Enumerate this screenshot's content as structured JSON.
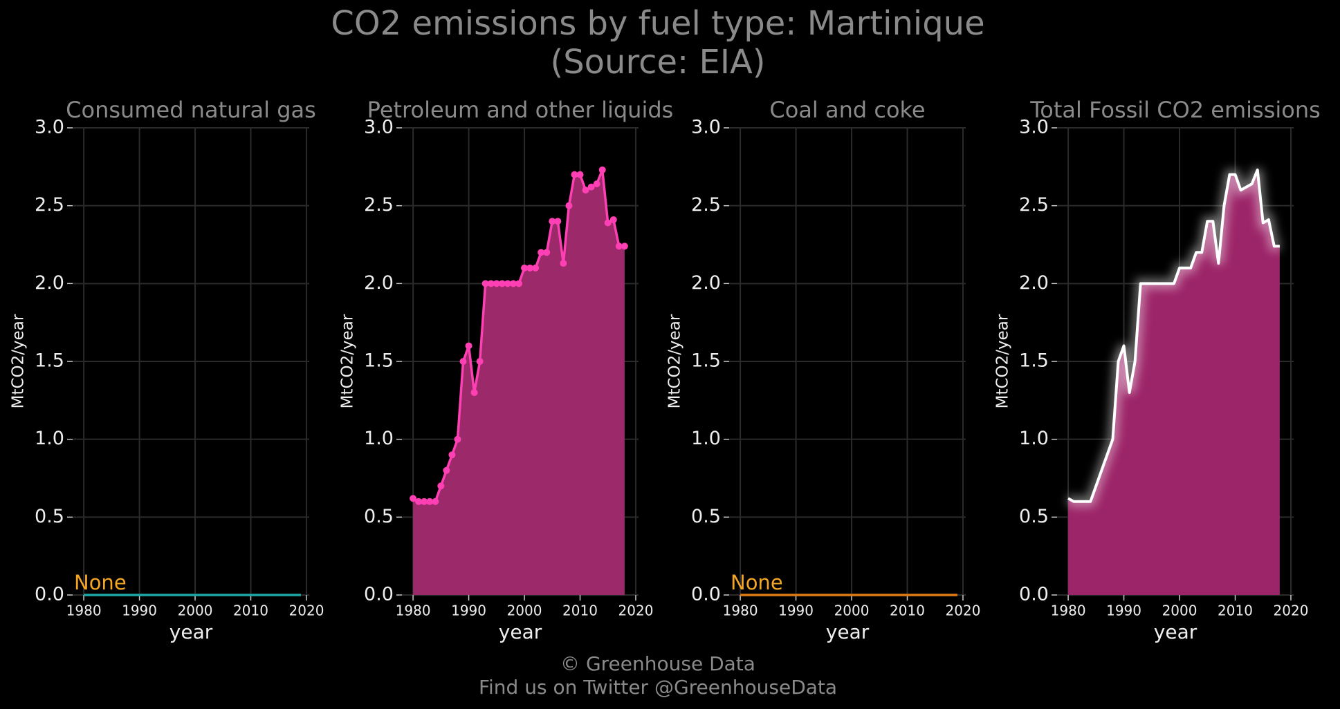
{
  "title": "CO2 emissions by fuel type: Martinique",
  "subtitle": "(Source: EIA)",
  "footer": [
    "© Greenhouse Data",
    "Find us on Twitter @GreenhouseData"
  ],
  "chart_data": [
    {
      "type": "line",
      "title": "Consumed natural gas",
      "xlabel": "year",
      "ylabel": "MtCO2/year",
      "annotation": "None",
      "annotation_color": "#f5a623",
      "x": [
        1980,
        1981,
        1982,
        1983,
        1984,
        1985,
        1986,
        1987,
        1988,
        1989,
        1990,
        1991,
        1992,
        1993,
        1994,
        1995,
        1996,
        1997,
        1998,
        1999,
        2000,
        2001,
        2002,
        2003,
        2004,
        2005,
        2006,
        2007,
        2008,
        2009,
        2010,
        2011,
        2012,
        2013,
        2014,
        2015,
        2016,
        2017,
        2018,
        2019
      ],
      "series": [
        {
          "color": "#1fa8a8",
          "values": [
            0,
            0,
            0,
            0,
            0,
            0,
            0,
            0,
            0,
            0,
            0,
            0,
            0,
            0,
            0,
            0,
            0,
            0,
            0,
            0,
            0,
            0,
            0,
            0,
            0,
            0,
            0,
            0,
            0,
            0,
            0,
            0,
            0,
            0,
            0,
            0,
            0,
            0,
            0,
            0
          ]
        }
      ],
      "xlim": [
        1978,
        2020.5
      ],
      "ylim": [
        0,
        3.0
      ],
      "xticks": [
        1980,
        1990,
        2000,
        2010,
        2020
      ],
      "yticks": [
        {
          "value": 0,
          "label": "0.0"
        },
        {
          "value": 0.5,
          "label": "0.5"
        },
        {
          "value": 1,
          "label": "1.0"
        },
        {
          "value": 1.5,
          "label": "1.5"
        },
        {
          "value": 2,
          "label": "2.0"
        },
        {
          "value": 2.5,
          "label": "2.5"
        },
        {
          "value": 3,
          "label": "3.0"
        }
      ],
      "grid": true
    },
    {
      "type": "line",
      "title": "Petroleum and other liquids",
      "xlabel": "year",
      "ylabel": "MtCO2/year",
      "x": [
        1980,
        1981,
        1982,
        1983,
        1984,
        1985,
        1986,
        1987,
        1988,
        1989,
        1990,
        1991,
        1992,
        1993,
        1994,
        1995,
        1996,
        1997,
        1998,
        1999,
        2000,
        2001,
        2002,
        2003,
        2004,
        2005,
        2006,
        2007,
        2008,
        2009,
        2010,
        2011,
        2012,
        2013,
        2014,
        2015,
        2016,
        2017,
        2018
      ],
      "series": [
        {
          "color": "#ff3fb4",
          "area_color": "#9c2a6a",
          "markers": true,
          "values": [
            0.62,
            0.6,
            0.6,
            0.6,
            0.6,
            0.7,
            0.8,
            0.9,
            1.0,
            1.5,
            1.6,
            1.3,
            1.5,
            2.0,
            2.0,
            2.0,
            2.0,
            2.0,
            2.0,
            2.0,
            2.1,
            2.1,
            2.1,
            2.2,
            2.2,
            2.4,
            2.4,
            2.13,
            2.5,
            2.7,
            2.7,
            2.6,
            2.62,
            2.64,
            2.73,
            2.39,
            2.41,
            2.24,
            2.24
          ]
        }
      ],
      "xlim": [
        1978,
        2020.5
      ],
      "ylim": [
        0,
        3.0
      ],
      "xticks": [
        1980,
        1990,
        2000,
        2010,
        2020
      ],
      "yticks": [
        {
          "value": 0,
          "label": "0.0"
        },
        {
          "value": 0.5,
          "label": "0.5"
        },
        {
          "value": 1,
          "label": "1.0"
        },
        {
          "value": 1.5,
          "label": "1.5"
        },
        {
          "value": 2,
          "label": "2.0"
        },
        {
          "value": 2.5,
          "label": "2.5"
        },
        {
          "value": 3,
          "label": "3.0"
        }
      ],
      "grid": true
    },
    {
      "type": "line",
      "title": "Coal and coke",
      "xlabel": "year",
      "ylabel": "MtCO2/year",
      "annotation": "None",
      "annotation_color": "#f5a623",
      "x": [
        1980,
        1981,
        1982,
        1983,
        1984,
        1985,
        1986,
        1987,
        1988,
        1989,
        1990,
        1991,
        1992,
        1993,
        1994,
        1995,
        1996,
        1997,
        1998,
        1999,
        2000,
        2001,
        2002,
        2003,
        2004,
        2005,
        2006,
        2007,
        2008,
        2009,
        2010,
        2011,
        2012,
        2013,
        2014,
        2015,
        2016,
        2017,
        2018,
        2019
      ],
      "series": [
        {
          "color": "#e07b16",
          "values": [
            0,
            0,
            0,
            0,
            0,
            0,
            0,
            0,
            0,
            0,
            0,
            0,
            0,
            0,
            0,
            0,
            0,
            0,
            0,
            0,
            0,
            0,
            0,
            0,
            0,
            0,
            0,
            0,
            0,
            0,
            0,
            0,
            0,
            0,
            0,
            0,
            0,
            0,
            0,
            0
          ]
        }
      ],
      "xlim": [
        1978,
        2020.5
      ],
      "ylim": [
        0,
        3.0
      ],
      "xticks": [
        1980,
        1990,
        2000,
        2010,
        2020
      ],
      "yticks": [
        {
          "value": 0,
          "label": "0.0"
        },
        {
          "value": 0.5,
          "label": "0.5"
        },
        {
          "value": 1,
          "label": "1.0"
        },
        {
          "value": 1.5,
          "label": "1.5"
        },
        {
          "value": 2,
          "label": "2.0"
        },
        {
          "value": 2.5,
          "label": "2.5"
        },
        {
          "value": 3,
          "label": "3.0"
        }
      ],
      "grid": true
    },
    {
      "type": "line",
      "title": "Total Fossil CO2 emissions",
      "xlabel": "year",
      "ylabel": "MtCO2/year",
      "x": [
        1980,
        1981,
        1982,
        1983,
        1984,
        1985,
        1986,
        1987,
        1988,
        1989,
        1990,
        1991,
        1992,
        1993,
        1994,
        1995,
        1996,
        1997,
        1998,
        1999,
        2000,
        2001,
        2002,
        2003,
        2004,
        2005,
        2006,
        2007,
        2008,
        2009,
        2010,
        2011,
        2012,
        2013,
        2014,
        2015,
        2016,
        2017,
        2018
      ],
      "series": [
        {
          "color": "#ffffff",
          "area_color": "#9c2468",
          "glow": true,
          "values": [
            0.62,
            0.6,
            0.6,
            0.6,
            0.6,
            0.7,
            0.8,
            0.9,
            1.0,
            1.5,
            1.6,
            1.3,
            1.5,
            2.0,
            2.0,
            2.0,
            2.0,
            2.0,
            2.0,
            2.0,
            2.1,
            2.1,
            2.1,
            2.2,
            2.2,
            2.4,
            2.4,
            2.13,
            2.5,
            2.7,
            2.7,
            2.6,
            2.62,
            2.64,
            2.73,
            2.39,
            2.41,
            2.24,
            2.24
          ]
        }
      ],
      "xlim": [
        1978,
        2020.5
      ],
      "ylim": [
        0,
        3.0
      ],
      "xticks": [
        1980,
        1990,
        2000,
        2010,
        2020
      ],
      "yticks": [
        {
          "value": 0,
          "label": "0.0"
        },
        {
          "value": 0.5,
          "label": "0.5"
        },
        {
          "value": 1,
          "label": "1.0"
        },
        {
          "value": 1.5,
          "label": "1.5"
        },
        {
          "value": 2,
          "label": "2.0"
        },
        {
          "value": 2.5,
          "label": "2.5"
        },
        {
          "value": 3,
          "label": "3.0"
        }
      ],
      "grid": true
    }
  ]
}
